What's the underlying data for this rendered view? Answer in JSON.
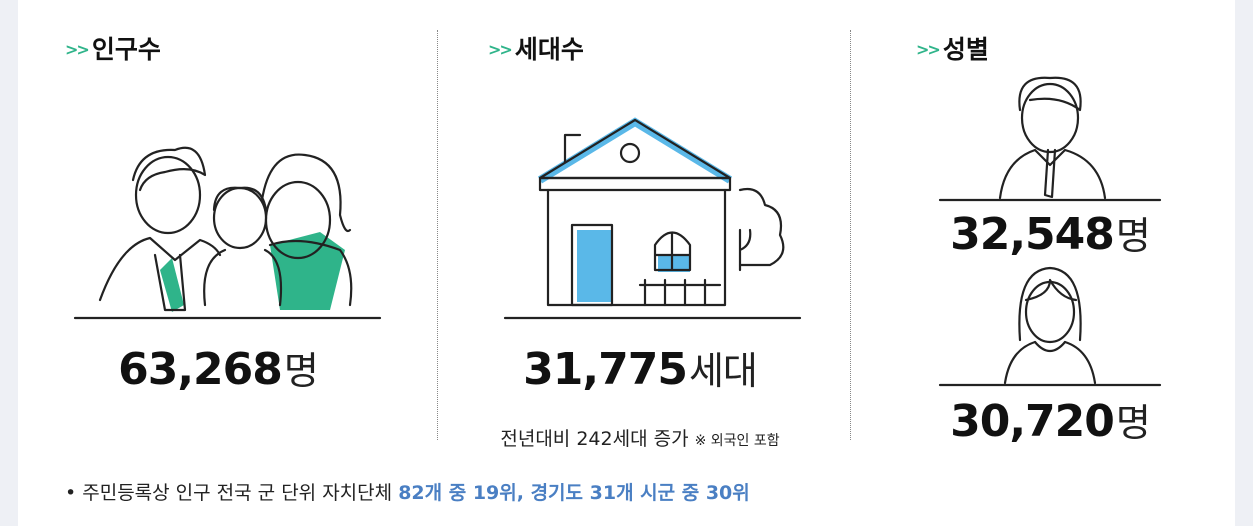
{
  "sections": {
    "population": {
      "title": "인구수",
      "value": "63,268",
      "unit": "명"
    },
    "households": {
      "title": "세대수",
      "value": "31,775",
      "unit": "세대",
      "note": "전년대비 242세대 증가",
      "note_small": "※ 외국인 포함"
    },
    "gender": {
      "title": "성별",
      "male": {
        "value": "32,548",
        "unit": "명"
      },
      "female": {
        "value": "30,720",
        "unit": "명"
      }
    }
  },
  "footer": {
    "text": "• 주민등록상 인구 전국 군 단위 자치단체",
    "highlight": "82개 중 19위,  경기도 31개 시군 중 30위"
  }
}
